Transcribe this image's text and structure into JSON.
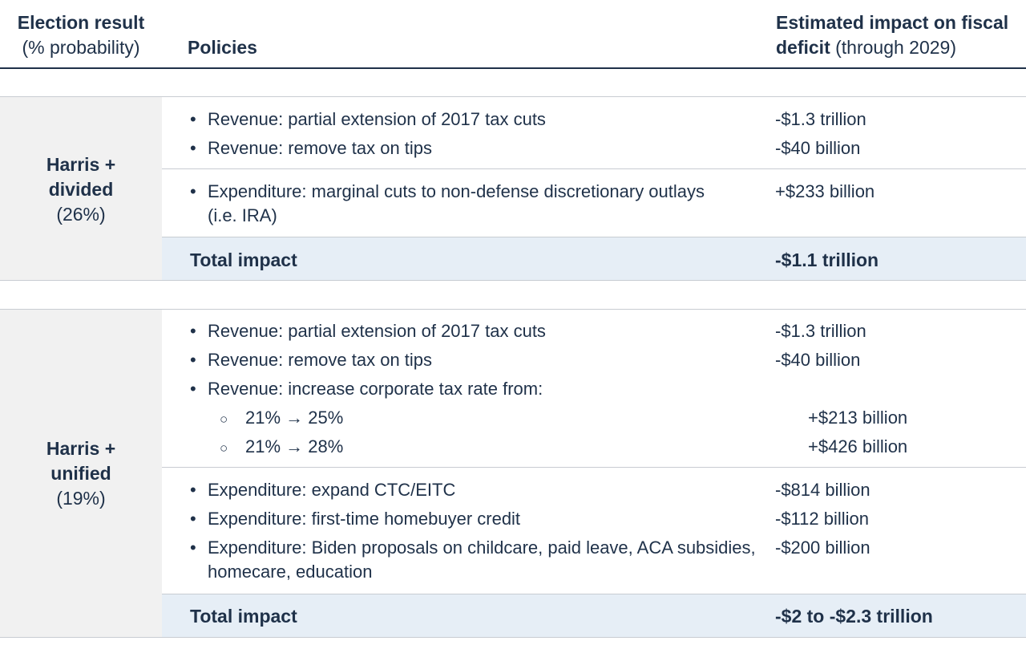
{
  "header": {
    "col1_bold": "Election result",
    "col1_sub": "(% probability)",
    "col2": "Policies",
    "col3_bold_1": "Estimated impact on fiscal",
    "col3_bold_2": "deficit",
    "col3_sub": "(through 2029)"
  },
  "scenarios": [
    {
      "name_1": "Harris +",
      "name_2": "divided",
      "probability": "(26%)",
      "revenue_items": [
        {
          "bullet": "•",
          "text": "Revenue: partial extension of 2017 tax cuts",
          "value": "-$1.3 trillion"
        },
        {
          "bullet": "•",
          "text": "Revenue: remove tax on tips",
          "value": "-$40 billion"
        }
      ],
      "expenditure_items": [
        {
          "bullet": "•",
          "text": "Expenditure: marginal cuts to non-defense discretionary outlays",
          "text_cont": "(i.e. IRA)",
          "value": "+$233 billion"
        }
      ],
      "total_label": "Total impact",
      "total_value": "-$1.1 trillion"
    },
    {
      "name_1": "Harris +",
      "name_2": "unified",
      "probability": "(19%)",
      "revenue_items": [
        {
          "bullet": "•",
          "text": "Revenue: partial extension of 2017 tax cuts",
          "value": "-$1.3 trillion"
        },
        {
          "bullet": "•",
          "text": "Revenue: remove tax on tips",
          "value": "-$40 billion"
        },
        {
          "bullet": "•",
          "text": "Revenue: increase corporate tax rate from:"
        }
      ],
      "sub_items": [
        {
          "bullet": "○",
          "text": "21% → 25%",
          "value": "+$213 billion"
        },
        {
          "bullet": "○",
          "text": "21% → 28%",
          "value": "+$426 billion"
        }
      ],
      "expenditure_items": [
        {
          "bullet": "•",
          "text": "Expenditure: expand CTC/EITC",
          "value": "-$814 billion"
        },
        {
          "bullet": "•",
          "text": "Expenditure: first-time homebuyer credit",
          "value": "-$112 billion"
        },
        {
          "bullet": "•",
          "text": "Expenditure: Biden proposals on childcare, paid leave, ACA subsidies,",
          "text_cont": "homecare, education",
          "value": "-$200 billion"
        }
      ],
      "total_label": "Total impact",
      "total_value": "-$2 to -$2.3 trillion"
    }
  ]
}
